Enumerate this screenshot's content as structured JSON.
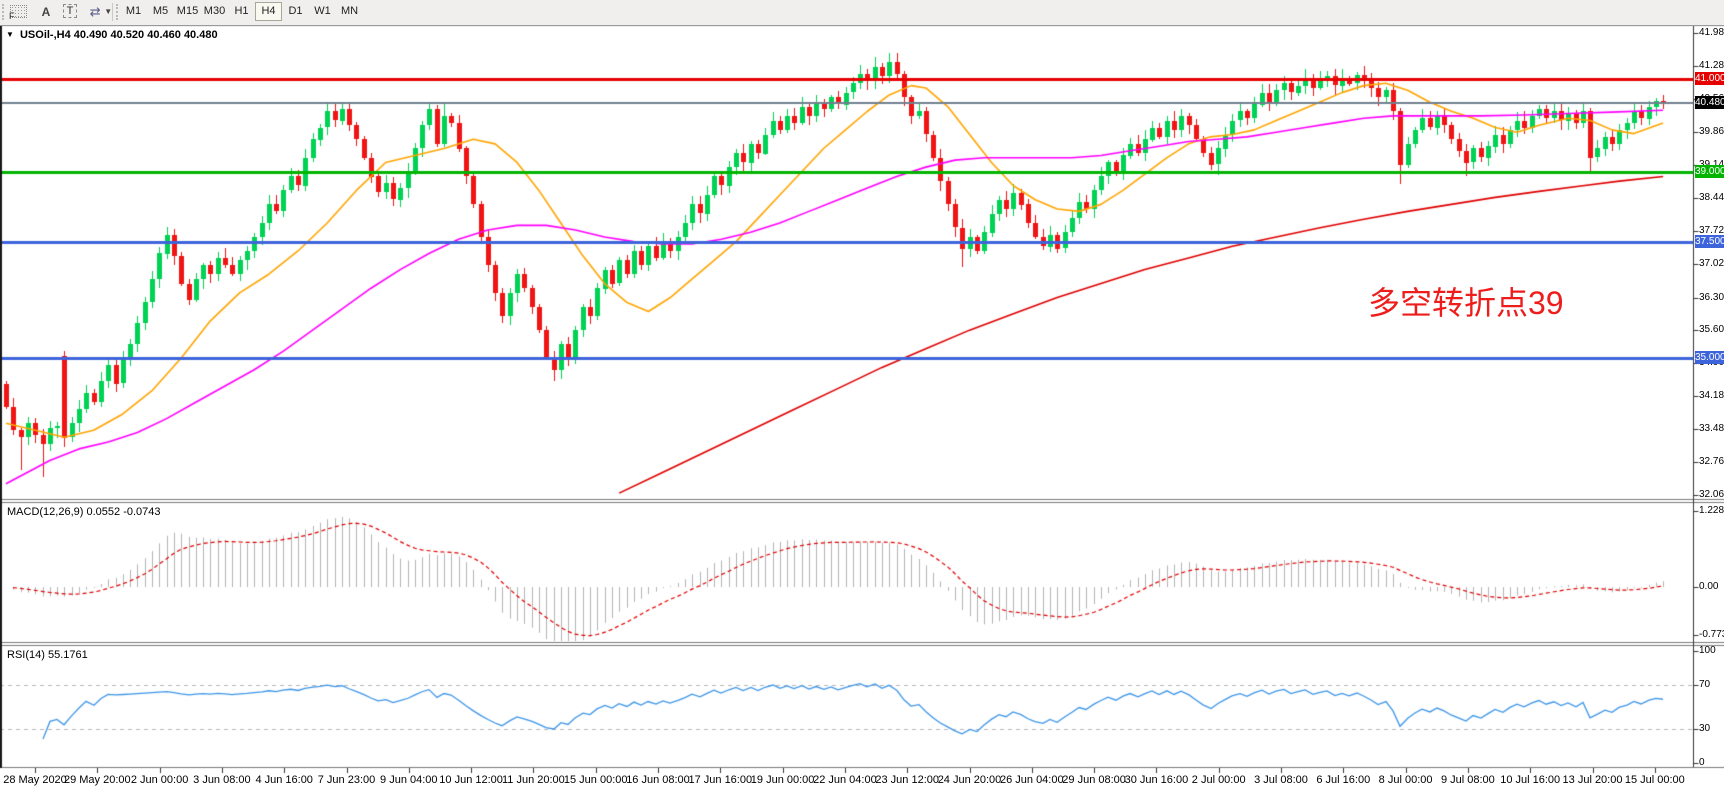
{
  "toolbar": {
    "text_label_tool": "A",
    "textbox_tool": "T",
    "cycle_tool": "⇄",
    "grid_tool_letter": "F",
    "timeframes": [
      {
        "label": "M1",
        "active": false
      },
      {
        "label": "M5",
        "active": false
      },
      {
        "label": "M15",
        "active": false
      },
      {
        "label": "M30",
        "active": false
      },
      {
        "label": "H1",
        "active": false
      },
      {
        "label": "H4",
        "active": true
      },
      {
        "label": "D1",
        "active": false
      },
      {
        "label": "W1",
        "active": false
      },
      {
        "label": "MN",
        "active": false
      }
    ]
  },
  "chart": {
    "symbol": "USOil-,H4",
    "ohlc": {
      "open": "40.490",
      "high": "40.520",
      "low": "40.460",
      "close": "40.480"
    },
    "dropdown_glyph": "▼",
    "annotation": {
      "text": "多空转折点39",
      "color": "#ef1c1c"
    },
    "current_price": {
      "label": "40.480",
      "value": 40.48,
      "badge_bg": "#000000",
      "line_color": "#708090"
    },
    "price_axis": {
      "top_value": 41.98,
      "bottom_value": 32.06,
      "ticks": [
        "41.980",
        "41.280",
        "40.560",
        "39.860",
        "39.140",
        "38.440",
        "37.720",
        "37.020",
        "36.300",
        "35.600",
        "34.900",
        "34.180",
        "33.480",
        "32.760",
        "32.060"
      ]
    },
    "hlines": [
      {
        "price": 41.0,
        "label": "41.000",
        "color": "#e60000"
      },
      {
        "price": 39.0,
        "label": "39.000",
        "color": "#00b400"
      },
      {
        "price": 37.5,
        "label": "37.500",
        "color": "#3e64dc"
      },
      {
        "price": 35.0,
        "label": "35.000",
        "color": "#3e64dc"
      }
    ]
  },
  "chart_data": {
    "type": "candlestick",
    "symbol": "USOil-",
    "timeframe": "H4",
    "bars": 228,
    "closes": [
      33.95,
      33.45,
      33.3,
      33.6,
      33.35,
      33.15,
      33.5,
      33.55,
      33.3,
      33.6,
      33.9,
      34.25,
      34.05,
      34.5,
      34.85,
      34.45,
      34.95,
      35.3,
      35.75,
      36.2,
      36.7,
      37.25,
      37.65,
      37.2,
      36.6,
      36.25,
      36.7,
      37.0,
      36.8,
      37.15,
      37.0,
      36.8,
      37.1,
      37.3,
      37.6,
      37.9,
      38.3,
      38.15,
      38.6,
      38.9,
      38.7,
      39.3,
      39.7,
      39.95,
      40.3,
      40.1,
      40.35,
      40.0,
      39.7,
      39.3,
      38.9,
      38.55,
      38.75,
      38.4,
      38.65,
      39.0,
      39.5,
      40.0,
      40.35,
      39.6,
      40.2,
      40.05,
      39.5,
      38.9,
      38.3,
      37.6,
      37.0,
      36.4,
      35.9,
      36.4,
      36.8,
      36.5,
      36.1,
      35.6,
      35.0,
      34.75,
      35.3,
      35.0,
      35.6,
      36.1,
      35.9,
      36.5,
      36.9,
      36.6,
      37.1,
      36.8,
      37.3,
      37.0,
      37.4,
      37.15,
      37.5,
      37.3,
      37.6,
      37.9,
      38.3,
      38.1,
      38.5,
      38.9,
      38.7,
      39.1,
      39.4,
      39.2,
      39.6,
      39.4,
      39.8,
      40.1,
      39.9,
      40.2,
      40.05,
      40.4,
      40.2,
      40.5,
      40.35,
      40.6,
      40.45,
      40.7,
      40.9,
      41.1,
      40.95,
      41.25,
      41.05,
      41.35,
      41.1,
      40.6,
      40.2,
      40.3,
      39.8,
      39.3,
      38.8,
      38.3,
      37.8,
      37.35,
      37.6,
      37.3,
      37.7,
      38.1,
      38.4,
      38.2,
      38.55,
      38.3,
      37.9,
      37.6,
      37.4,
      37.65,
      37.35,
      37.7,
      38.0,
      38.35,
      38.2,
      38.6,
      38.9,
      39.2,
      39.0,
      39.35,
      39.6,
      39.4,
      39.7,
      39.95,
      39.75,
      40.1,
      39.9,
      40.2,
      40.0,
      39.7,
      39.4,
      39.15,
      39.5,
      39.8,
      40.1,
      40.3,
      40.15,
      40.45,
      40.7,
      40.5,
      40.75,
      40.9,
      40.7,
      40.85,
      41.0,
      40.8,
      40.95,
      41.05,
      40.85,
      41.0,
      40.9,
      41.08,
      40.95,
      40.8,
      40.6,
      40.75,
      40.3,
      39.15,
      39.6,
      39.9,
      40.15,
      39.95,
      40.2,
      40.0,
      39.7,
      39.45,
      39.2,
      39.5,
      39.3,
      39.55,
      39.8,
      39.6,
      39.9,
      40.1,
      39.95,
      40.2,
      40.35,
      40.15,
      40.3,
      40.1,
      40.25,
      40.05,
      40.3,
      39.3,
      39.5,
      39.75,
      39.6,
      39.9,
      40.05,
      40.3,
      40.15,
      40.4,
      40.52,
      40.48
    ],
    "open_overrides": {
      "0": 34.45,
      "8": 35.05
    },
    "extremes": {
      "2": {
        "l": 32.6
      },
      "5": {
        "l": 32.45
      },
      "8": {
        "l": 33.1
      },
      "60": {
        "h": 40.45
      },
      "75": {
        "l": 34.5
      },
      "121": {
        "h": 41.55
      },
      "131": {
        "l": 36.95
      },
      "183": {
        "h": 41.2
      },
      "191": {
        "l": 38.75
      },
      "200": {
        "l": 38.9
      },
      "217": {
        "l": 38.95
      }
    },
    "colors": {
      "bull": "#00d254",
      "bear": "#f01414"
    },
    "moving_averages": [
      {
        "name": "ma-fast",
        "color": "#ffa500",
        "points": [
          [
            0,
            33.6
          ],
          [
            4,
            33.45
          ],
          [
            8,
            33.3
          ],
          [
            12,
            33.45
          ],
          [
            16,
            33.8
          ],
          [
            20,
            34.3
          ],
          [
            24,
            35.0
          ],
          [
            28,
            35.8
          ],
          [
            32,
            36.4
          ],
          [
            36,
            36.8
          ],
          [
            40,
            37.3
          ],
          [
            44,
            37.9
          ],
          [
            48,
            38.6
          ],
          [
            52,
            39.2
          ],
          [
            56,
            39.35
          ],
          [
            60,
            39.5
          ],
          [
            64,
            39.7
          ],
          [
            67,
            39.6
          ],
          [
            70,
            39.2
          ],
          [
            73,
            38.6
          ],
          [
            76,
            37.9
          ],
          [
            79,
            37.2
          ],
          [
            82,
            36.6
          ],
          [
            85,
            36.2
          ],
          [
            88,
            36.0
          ],
          [
            91,
            36.3
          ],
          [
            94,
            36.7
          ],
          [
            97,
            37.1
          ],
          [
            100,
            37.5
          ],
          [
            103,
            38.0
          ],
          [
            106,
            38.5
          ],
          [
            109,
            39.0
          ],
          [
            112,
            39.5
          ],
          [
            115,
            39.9
          ],
          [
            118,
            40.3
          ],
          [
            121,
            40.65
          ],
          [
            124,
            40.85
          ],
          [
            126,
            40.8
          ],
          [
            129,
            40.4
          ],
          [
            132,
            39.8
          ],
          [
            135,
            39.2
          ],
          [
            138,
            38.7
          ],
          [
            141,
            38.4
          ],
          [
            144,
            38.2
          ],
          [
            147,
            38.15
          ],
          [
            150,
            38.3
          ],
          [
            153,
            38.6
          ],
          [
            156,
            38.95
          ],
          [
            159,
            39.3
          ],
          [
            162,
            39.6
          ],
          [
            165,
            39.75
          ],
          [
            168,
            39.8
          ],
          [
            171,
            39.9
          ],
          [
            174,
            40.1
          ],
          [
            177,
            40.3
          ],
          [
            180,
            40.5
          ],
          [
            183,
            40.7
          ],
          [
            186,
            40.85
          ],
          [
            189,
            40.9
          ],
          [
            192,
            40.75
          ],
          [
            195,
            40.5
          ],
          [
            198,
            40.3
          ],
          [
            201,
            40.15
          ],
          [
            204,
            39.95
          ],
          [
            207,
            39.85
          ],
          [
            210,
            40.0
          ],
          [
            214,
            40.15
          ],
          [
            217,
            40.1
          ],
          [
            220,
            39.9
          ],
          [
            223,
            39.82
          ],
          [
            227,
            40.05
          ]
        ]
      },
      {
        "name": "ma-mid",
        "color": "#ff00ff",
        "points": [
          [
            0,
            32.3
          ],
          [
            6,
            32.8
          ],
          [
            10,
            33.05
          ],
          [
            14,
            33.2
          ],
          [
            18,
            33.4
          ],
          [
            22,
            33.7
          ],
          [
            26,
            34.05
          ],
          [
            30,
            34.4
          ],
          [
            34,
            34.75
          ],
          [
            38,
            35.15
          ],
          [
            42,
            35.6
          ],
          [
            46,
            36.05
          ],
          [
            50,
            36.5
          ],
          [
            54,
            36.9
          ],
          [
            58,
            37.25
          ],
          [
            62,
            37.55
          ],
          [
            66,
            37.75
          ],
          [
            70,
            37.85
          ],
          [
            74,
            37.85
          ],
          [
            78,
            37.75
          ],
          [
            82,
            37.6
          ],
          [
            86,
            37.5
          ],
          [
            90,
            37.45
          ],
          [
            94,
            37.45
          ],
          [
            98,
            37.55
          ],
          [
            102,
            37.7
          ],
          [
            106,
            37.9
          ],
          [
            110,
            38.15
          ],
          [
            114,
            38.4
          ],
          [
            118,
            38.65
          ],
          [
            122,
            38.9
          ],
          [
            126,
            39.1
          ],
          [
            130,
            39.25
          ],
          [
            134,
            39.3
          ],
          [
            138,
            39.3
          ],
          [
            142,
            39.3
          ],
          [
            146,
            39.3
          ],
          [
            150,
            39.35
          ],
          [
            154,
            39.45
          ],
          [
            158,
            39.55
          ],
          [
            162,
            39.65
          ],
          [
            166,
            39.7
          ],
          [
            170,
            39.75
          ],
          [
            174,
            39.85
          ],
          [
            178,
            39.95
          ],
          [
            182,
            40.05
          ],
          [
            186,
            40.15
          ],
          [
            190,
            40.2
          ],
          [
            196,
            40.2
          ],
          [
            202,
            40.2
          ],
          [
            208,
            40.22
          ],
          [
            214,
            40.25
          ],
          [
            220,
            40.28
          ],
          [
            227,
            40.32
          ]
        ]
      },
      {
        "name": "ma-slow",
        "color": "#e00000",
        "points": [
          [
            84,
            32.1
          ],
          [
            90,
            32.55
          ],
          [
            96,
            33.0
          ],
          [
            102,
            33.45
          ],
          [
            108,
            33.9
          ],
          [
            114,
            34.35
          ],
          [
            120,
            34.8
          ],
          [
            126,
            35.2
          ],
          [
            132,
            35.6
          ],
          [
            138,
            35.95
          ],
          [
            144,
            36.3
          ],
          [
            150,
            36.6
          ],
          [
            156,
            36.9
          ],
          [
            162,
            37.15
          ],
          [
            168,
            37.4
          ],
          [
            174,
            37.6
          ],
          [
            180,
            37.8
          ],
          [
            186,
            37.98
          ],
          [
            192,
            38.15
          ],
          [
            198,
            38.3
          ],
          [
            204,
            38.45
          ],
          [
            210,
            38.58
          ],
          [
            216,
            38.7
          ],
          [
            221,
            38.8
          ],
          [
            227,
            38.9
          ]
        ]
      }
    ],
    "indicators": [
      {
        "name": "MACD",
        "label": "MACD(12,26,9)",
        "values": [
          "0.0552",
          "-0.0743"
        ],
        "axis_ticks": [
          "1.2281",
          "0.00",
          "-0.7738"
        ],
        "ylim": [
          -0.7738,
          1.2281
        ],
        "histogram_color": "#b4b4b4",
        "signal_color": "#e00000"
      },
      {
        "name": "RSI",
        "label": "RSI(14)",
        "values": [
          "55.1761"
        ],
        "axis_ticks": [
          "100",
          "70",
          "30",
          "0"
        ],
        "levels": [
          70,
          30
        ],
        "ylim": [
          0,
          100
        ],
        "line_color": "#3e96e8",
        "level_color": "#b8b8b8"
      }
    ],
    "time_axis": [
      "28 May 2020",
      "29 May 20:00",
      "2 Jun 00:00",
      "3 Jun 08:00",
      "4 Jun 16:00",
      "7 Jun 23:00",
      "9 Jun 04:00",
      "10 Jun 12:00",
      "11 Jun 20:00",
      "15 Jun 00:00",
      "16 Jun 08:00",
      "17 Jun 16:00",
      "19 Jun 00:00",
      "22 Jun 04:00",
      "23 Jun 12:00",
      "24 Jun 20:00",
      "26 Jun 04:00",
      "29 Jun 08:00",
      "30 Jun 16:00",
      "2 Jul 00:00",
      "3 Jul 08:00",
      "6 Jul 16:00",
      "8 Jul 00:00",
      "9 Jul 08:00",
      "10 Jul 16:00",
      "13 Jul 20:00",
      "15 Jul 00:00"
    ]
  }
}
